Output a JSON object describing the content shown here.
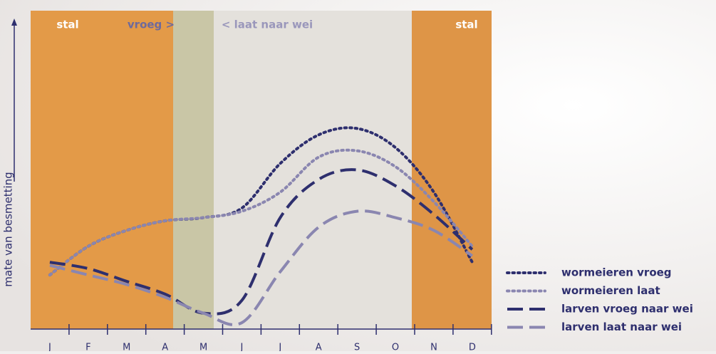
{
  "chart_data": {
    "type": "line",
    "y_label": "mate van besmetting",
    "categories": [
      "J",
      "F",
      "M",
      "A",
      "M",
      "J",
      "J",
      "A",
      "S",
      "O",
      "N",
      "D"
    ],
    "ylim": [
      0,
      100
    ],
    "annotations": [
      "stal",
      "vroeg >",
      "< laat naar wei",
      "stal"
    ],
    "series": [
      {
        "name": "wormeieren vroeg",
        "color": "#2e2f6e",
        "style": "dotted",
        "values": [
          17,
          26,
          31,
          34,
          35,
          38,
          52,
          61,
          63,
          57,
          43,
          21
        ]
      },
      {
        "name": "wormeieren laat",
        "color": "#8a86b0",
        "style": "dotted",
        "values": [
          17,
          26,
          31,
          34,
          35,
          37,
          43,
          54,
          56,
          51,
          40,
          26
        ]
      },
      {
        "name": "larven vroeg naar wei",
        "color": "#2e2f6e",
        "style": "dashed",
        "values": [
          21,
          19,
          15,
          11,
          5,
          9,
          35,
          47,
          50,
          45,
          36,
          25
        ]
      },
      {
        "name": "larven laat naar wei",
        "color": "#8a86b0",
        "style": "dashed",
        "values": [
          20,
          17,
          14,
          10,
          5,
          2,
          18,
          32,
          37,
          35,
          31,
          23
        ]
      }
    ]
  }
}
